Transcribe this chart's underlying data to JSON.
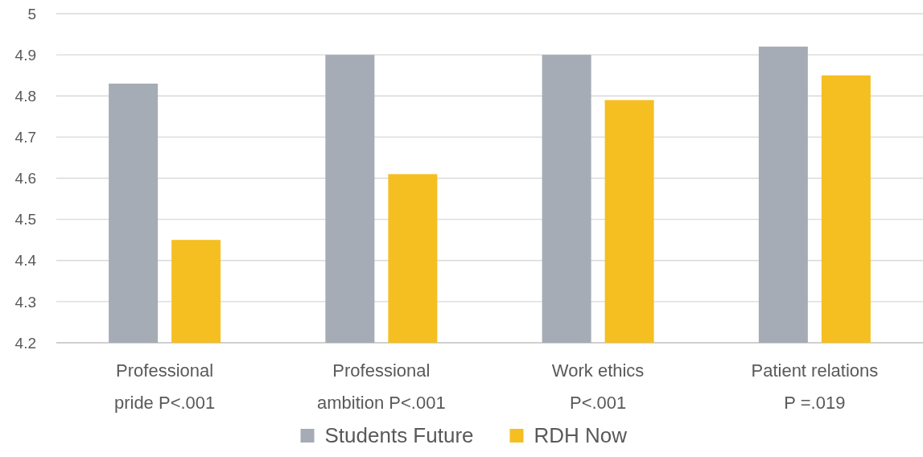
{
  "chart_data": {
    "type": "bar",
    "categories": [
      "Professional\npride P<.001",
      "Professional\nambition P<.001",
      "Work ethics\nP<.001",
      "Patient relations\nP =.019"
    ],
    "series": [
      {
        "name": "Students Future",
        "color": "#a5acb5",
        "values": [
          4.83,
          4.9,
          4.9,
          4.92
        ]
      },
      {
        "name": "RDH Now",
        "color": "#f5bf22",
        "values": [
          4.45,
          4.61,
          4.79,
          4.85
        ]
      }
    ],
    "ylim": [
      4.2,
      5
    ],
    "yticks": [
      4.2,
      4.3,
      4.4,
      4.5,
      4.6,
      4.7,
      4.8,
      4.9,
      5
    ],
    "grid": "y",
    "legend": "bottom"
  }
}
